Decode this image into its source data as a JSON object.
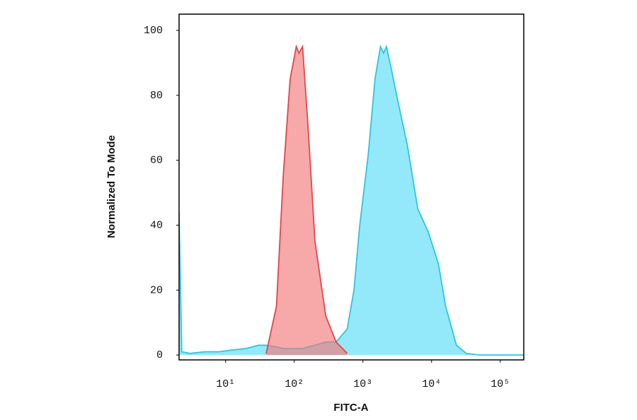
{
  "chart_data": {
    "type": "area",
    "x_label": "FITC-A",
    "y_label": "Normalized To Mode",
    "xscale": "log",
    "x": [
      2.1,
      2.3,
      3,
      5,
      8,
      12,
      20,
      30,
      39,
      55,
      69,
      87,
      107,
      117,
      132,
      159,
      200,
      288,
      407,
      589,
      740,
      900,
      1200,
      1500,
      1800,
      2000,
      2200,
      2600,
      3100,
      4400,
      6300,
      8900,
      12600,
      16000,
      23000,
      32000,
      50000,
      100000,
      220000
    ],
    "series": [
      {
        "color": "#2ec4e0",
        "fill": "#93e9f9",
        "values": [
          44,
          1,
          0.5,
          1,
          1,
          1.5,
          2,
          3,
          3,
          2.5,
          2,
          2,
          2,
          2,
          2,
          2.5,
          3,
          4,
          4,
          8,
          20,
          40,
          62,
          85,
          95,
          93,
          95,
          88,
          80,
          65,
          45,
          38,
          28,
          15,
          3,
          0.5,
          0,
          0,
          0
        ]
      },
      {
        "color": "#e0474c",
        "fill": "#f27a7a",
        "values": [
          null,
          null,
          null,
          null,
          null,
          null,
          null,
          null,
          0.5,
          15,
          55,
          85,
          95,
          93,
          95,
          70,
          35,
          12,
          4,
          0.5,
          null,
          null,
          null,
          null,
          null,
          null,
          null,
          null,
          null,
          null,
          null,
          null,
          null,
          null,
          null,
          null,
          null,
          null,
          null
        ]
      }
    ],
    "xlim": [
      2.1,
      220000
    ],
    "xticks": [
      {
        "value": 10,
        "label": "10¹"
      },
      {
        "value": 100,
        "label": "10²"
      },
      {
        "value": 1000,
        "label": "10³"
      },
      {
        "value": 10000,
        "label": "10⁴"
      },
      {
        "value": 100000,
        "label": "10⁵"
      }
    ],
    "ylim": [
      -1.5,
      105
    ],
    "yticks": [
      0,
      20,
      40,
      60,
      80,
      100
    ],
    "grid": false
  }
}
